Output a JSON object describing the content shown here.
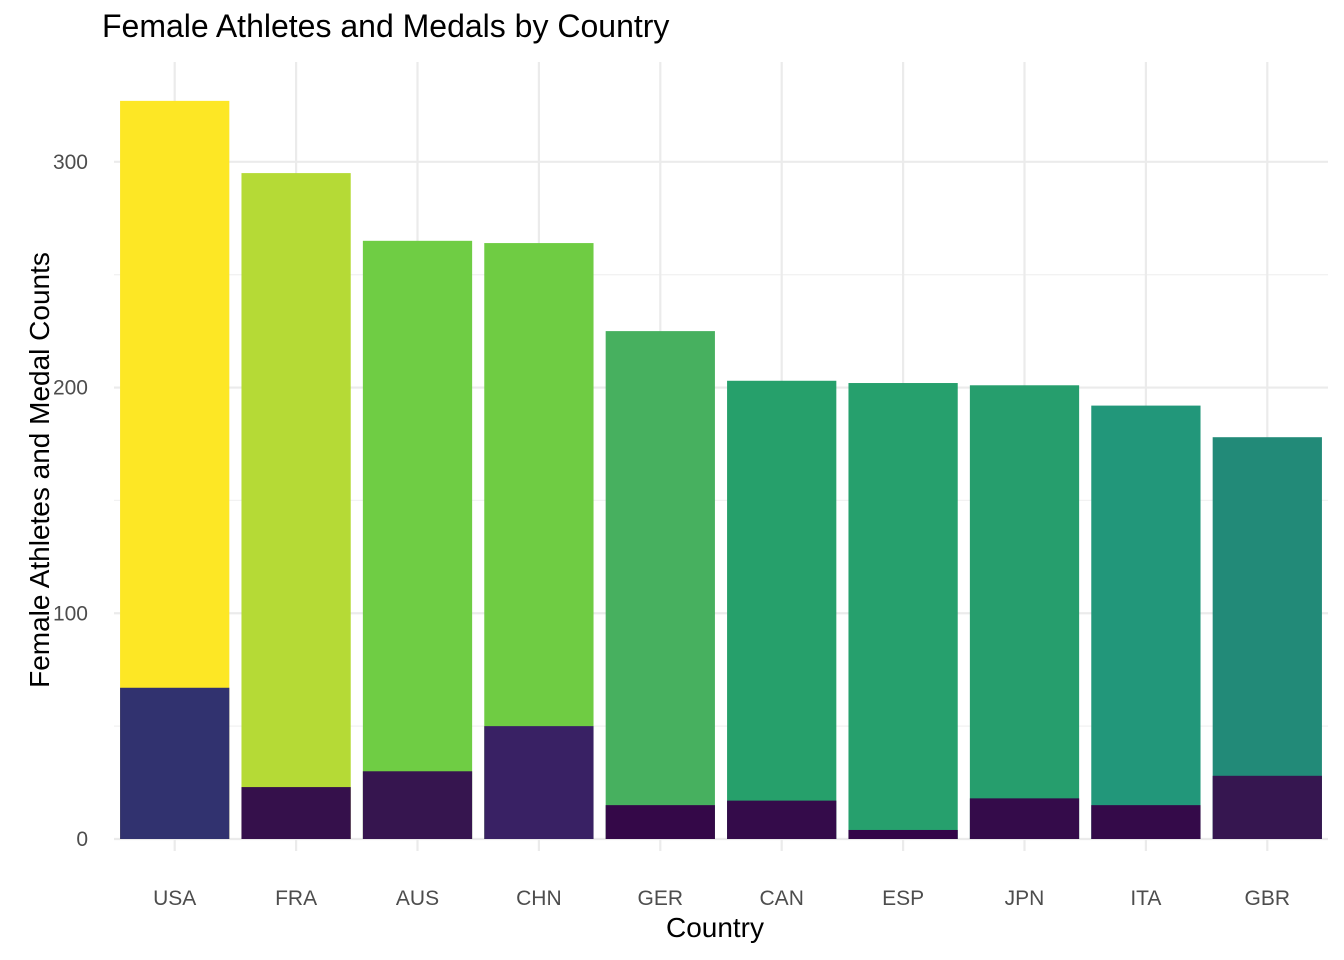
{
  "chart_data": {
    "type": "bar",
    "stacked": "overlay",
    "title": "Female Athletes and Medals by Country",
    "xlabel": "Country",
    "ylabel": "Female Athletes and Medal Counts",
    "ylim": [
      0,
      330
    ],
    "yticks": [
      0,
      100,
      200,
      300
    ],
    "grid": true,
    "legend": "none",
    "categories": [
      "USA",
      "FRA",
      "AUS",
      "CHN",
      "GER",
      "CAN",
      "ESP",
      "JPN",
      "ITA",
      "GBR"
    ],
    "series": [
      {
        "values": [
          327,
          295,
          265,
          264,
          225,
          203,
          202,
          201,
          192,
          178
        ],
        "colors": [
          "#FDE725",
          "#B5DA36",
          "#6FCD44",
          "#6FCC43",
          "#47B05F",
          "#26A06B",
          "#26A06D",
          "#269E6D",
          "#22977A",
          "#228A78"
        ]
      },
      {
        "values": [
          67,
          23,
          30,
          50,
          15,
          17,
          4,
          18,
          15,
          28
        ],
        "colors": [
          "#31326F",
          "#35104B",
          "#36154F",
          "#392164",
          "#340848",
          "#340B4A",
          "#330548",
          "#340B4A",
          "#340A49",
          "#361650"
        ]
      }
    ]
  }
}
